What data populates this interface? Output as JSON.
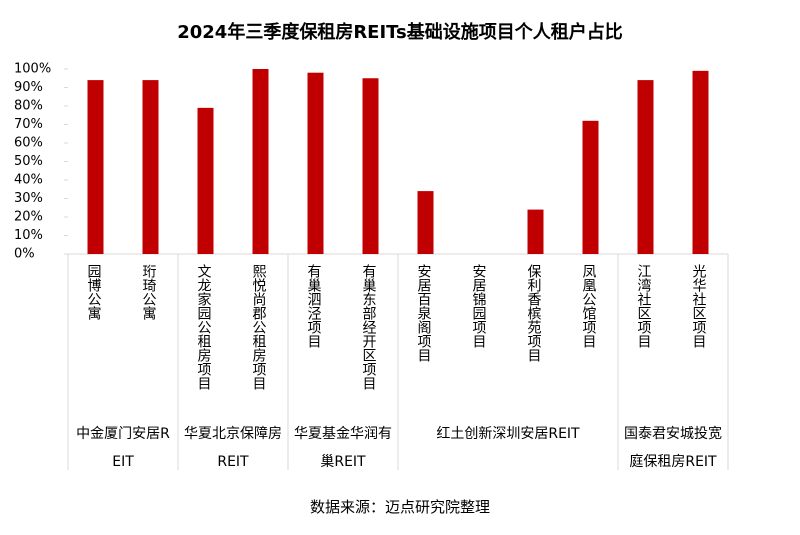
{
  "chart_data": {
    "type": "bar",
    "title": "2024年三季度保租房REITs基础设施项目个人租户占比",
    "categories": [
      "园博公寓",
      "珩琦公寓",
      "文龙家园公租房项目",
      "熙悦尚郡公租房项目",
      "有巢泗泾项目",
      "有巢东部经开区项目",
      "安居百泉阁项目",
      "安居锦园项目",
      "保利香槟苑项目",
      "凤凰公馆项目",
      "江湾社区项目",
      "光华社区项目"
    ],
    "groups": [
      {
        "name": "中金厦门安居REIT",
        "count": 2
      },
      {
        "name": "华夏北京保障房REIT",
        "count": 2
      },
      {
        "name": "华夏基金华润有巢REIT",
        "count": 2
      },
      {
        "name": "红土创新深圳安居REIT",
        "count": 4
      },
      {
        "name": "国泰君安城投宽庭保租房REIT",
        "count": 2
      }
    ],
    "values": [
      94,
      94,
      79,
      100,
      98,
      95,
      34,
      0,
      24,
      72,
      94,
      99
    ],
    "color": "#c00000",
    "ylim": [
      0,
      100
    ],
    "yticks": [
      {
        "value": 0,
        "label": "0%"
      },
      {
        "value": 10,
        "label": "10%"
      },
      {
        "value": 20,
        "label": "20%"
      },
      {
        "value": 30,
        "label": "30%"
      },
      {
        "value": 40,
        "label": "40%"
      },
      {
        "value": 50,
        "label": "50%"
      },
      {
        "value": 60,
        "label": "60%"
      },
      {
        "value": 70,
        "label": "70%"
      },
      {
        "value": 80,
        "label": "80%"
      },
      {
        "value": 90,
        "label": "90%"
      },
      {
        "value": 100,
        "label": "100%"
      }
    ],
    "source": "数据来源：迈点研究院整理"
  }
}
